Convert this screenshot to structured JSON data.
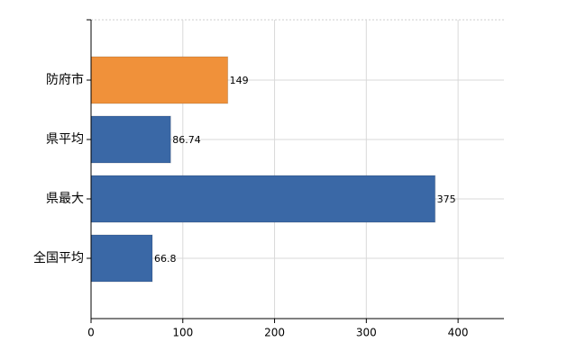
{
  "chart_data": {
    "type": "hbar",
    "categories": [
      "防府市",
      "県平均",
      "県最大",
      "全国平均"
    ],
    "values": [
      149,
      86.74,
      375,
      66.8
    ],
    "colors": [
      "#f0913a",
      "#3a68a6",
      "#3a68a6",
      "#3a68a6"
    ],
    "xlim": [
      0,
      450
    ],
    "xticks": [
      0,
      100,
      200,
      300,
      400
    ],
    "grid": true
  }
}
